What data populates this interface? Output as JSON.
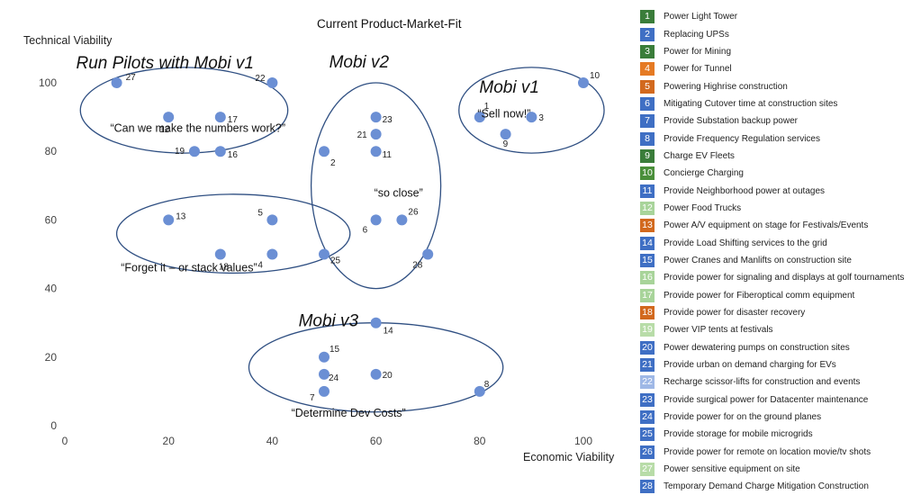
{
  "chart_data": {
    "type": "scatter",
    "title": "Current Product-Market-Fit",
    "xlabel": "Economic Viability",
    "ylabel": "Technical Viability",
    "xlim": [
      0,
      100
    ],
    "ylim": [
      0,
      100
    ],
    "xticks": [
      "0",
      "20",
      "40",
      "60",
      "80",
      "100"
    ],
    "yticks": [
      "0",
      "20",
      "40",
      "60",
      "80",
      "100"
    ],
    "grid": false,
    "marker_color": "#6b8fd4",
    "ellipse_color": "#2f4f82",
    "points": [
      {
        "id": "1",
        "x": 80,
        "y": 90
      },
      {
        "id": "2",
        "x": 50,
        "y": 80
      },
      {
        "id": "3",
        "x": 90,
        "y": 90
      },
      {
        "id": "4",
        "x": 40,
        "y": 50
      },
      {
        "id": "5",
        "x": 40,
        "y": 60
      },
      {
        "id": "6",
        "x": 60,
        "y": 60
      },
      {
        "id": "7",
        "x": 50,
        "y": 10
      },
      {
        "id": "8",
        "x": 80,
        "y": 10
      },
      {
        "id": "9",
        "x": 85,
        "y": 85
      },
      {
        "id": "10",
        "x": 100,
        "y": 100
      },
      {
        "id": "11",
        "x": 60,
        "y": 80
      },
      {
        "id": "12",
        "x": 20,
        "y": 90
      },
      {
        "id": "13",
        "x": 20,
        "y": 60
      },
      {
        "id": "14",
        "x": 60,
        "y": 30
      },
      {
        "id": "15",
        "x": 50,
        "y": 20
      },
      {
        "id": "16",
        "x": 30,
        "y": 80
      },
      {
        "id": "17",
        "x": 30,
        "y": 90
      },
      {
        "id": "18",
        "x": 30,
        "y": 50
      },
      {
        "id": "19",
        "x": 25,
        "y": 80
      },
      {
        "id": "20",
        "x": 60,
        "y": 15
      },
      {
        "id": "21",
        "x": 60,
        "y": 85
      },
      {
        "id": "22",
        "x": 40,
        "y": 100
      },
      {
        "id": "23",
        "x": 60,
        "y": 90
      },
      {
        "id": "24",
        "x": 50,
        "y": 15
      },
      {
        "id": "25",
        "x": 50,
        "y": 50
      },
      {
        "id": "26",
        "x": 65,
        "y": 60
      },
      {
        "id": "27",
        "x": 10,
        "y": 100
      },
      {
        "id": "28",
        "x": 70,
        "y": 50
      }
    ],
    "groups": [
      {
        "title": "Run Pilots with Mobi v1",
        "quote": "“Can we make the numbers work?”",
        "center": [
          23,
          92
        ],
        "radius": [
          20,
          12.5
        ]
      },
      {
        "title": "Mobi v2",
        "quote": "“so close”",
        "center": [
          60,
          70
        ],
        "radius": [
          12.5,
          30
        ]
      },
      {
        "title": "Mobi v1",
        "quote": "“Sell now!”",
        "center": [
          90,
          92
        ],
        "radius": [
          14,
          12.5
        ]
      },
      {
        "title": "",
        "quote": "“Forget it – or stack values”",
        "center": [
          32.5,
          56
        ],
        "radius": [
          22.5,
          11.5
        ]
      },
      {
        "title": "Mobi v3",
        "quote": "“Determine Dev Costs”",
        "center": [
          60,
          17
        ],
        "radius": [
          24.5,
          13
        ]
      }
    ],
    "legend": [
      {
        "id": "1",
        "label": "Power Light Tower",
        "color": "#3a7d3a"
      },
      {
        "id": "2",
        "label": "Replacing UPSs",
        "color": "#3f6fc4"
      },
      {
        "id": "3",
        "label": "Power for Mining",
        "color": "#3a7d3a"
      },
      {
        "id": "4",
        "label": "Power for Tunnel",
        "color": "#e57a23"
      },
      {
        "id": "5",
        "label": "Powering Highrise construction",
        "color": "#d2691e"
      },
      {
        "id": "6",
        "label": "Mitigating Cutover time at construction sites",
        "color": "#3f6fc4"
      },
      {
        "id": "7",
        "label": "Provide Substation backup power",
        "color": "#3f6fc4"
      },
      {
        "id": "8",
        "label": "Provide Frequency Regulation services",
        "color": "#3f6fc4"
      },
      {
        "id": "9",
        "label": "Charge EV Fleets",
        "color": "#3a7d3a"
      },
      {
        "id": "10",
        "label": "Concierge Charging",
        "color": "#4a8f3a"
      },
      {
        "id": "11",
        "label": "Provide Neighborhood power at outages",
        "color": "#3f6fc4"
      },
      {
        "id": "12",
        "label": "Power Food Trucks",
        "color": "#a8d49a"
      },
      {
        "id": "13",
        "label": "Power A/V equipment on stage for Festivals/Events",
        "color": "#d2691e"
      },
      {
        "id": "14",
        "label": "Provide Load Shifting services to the grid",
        "color": "#3f6fc4"
      },
      {
        "id": "15",
        "label": "Power Cranes and Manlifts on construction site",
        "color": "#3f6fc4"
      },
      {
        "id": "16",
        "label": "Provide power for signaling and displays at golf tournaments",
        "color": "#a8d49a"
      },
      {
        "id": "17",
        "label": "Provide power for Fiberoptical comm equipment",
        "color": "#a8d49a"
      },
      {
        "id": "18",
        "label": "Provide power for disaster recovery",
        "color": "#d2691e"
      },
      {
        "id": "19",
        "label": "Power VIP tents at festivals",
        "color": "#b8dca8"
      },
      {
        "id": "20",
        "label": "Power dewatering pumps on construction sites",
        "color": "#3f6fc4"
      },
      {
        "id": "21",
        "label": "Provide urban on demand charging for EVs",
        "color": "#3f6fc4"
      },
      {
        "id": "22",
        "label": "Recharge scissor-lifts for construction and events",
        "color": "#9fb8e6"
      },
      {
        "id": "23",
        "label": "Provide surgical power for Datacenter maintenance",
        "color": "#3f6fc4"
      },
      {
        "id": "24",
        "label": "Provide power for on the ground planes",
        "color": "#3f6fc4"
      },
      {
        "id": "25",
        "label": "Provide storage for mobile microgrids",
        "color": "#3f6fc4"
      },
      {
        "id": "26",
        "label": "Provide power for remote on location movie/tv shots",
        "color": "#3f6fc4"
      },
      {
        "id": "27",
        "label": "Power sensitive equipment on site",
        "color": "#b8dca8"
      },
      {
        "id": "28",
        "label": "Temporary Demand Charge Mitigation Construction",
        "color": "#3f6fc4"
      }
    ]
  }
}
